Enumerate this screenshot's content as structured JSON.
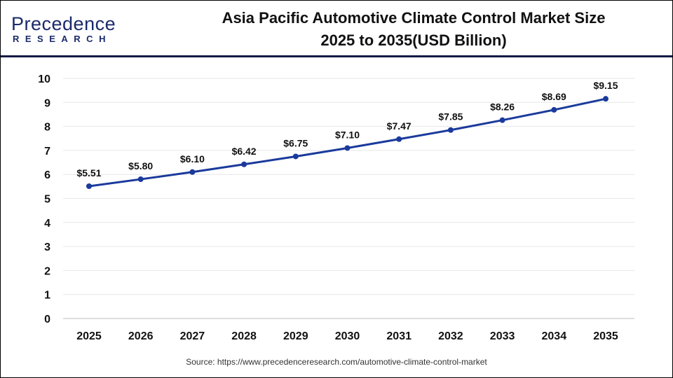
{
  "logo": {
    "line1": "Precedence",
    "line2": "RESEARCH"
  },
  "title_line1": "Asia Pacific Automotive Climate Control Market Size",
  "title_line2": "2025 to 2035(USD Billion)",
  "source": "Source: https://www.precedenceresearch.com/automotive-climate-control-market",
  "colors": {
    "line": "#1a3a9c",
    "header_rule": "#121a45",
    "grid": "#e6e6e6"
  },
  "chart_data": {
    "type": "line",
    "title": "Asia Pacific Automotive Climate Control Market Size 2025 to 2035(USD Billion)",
    "categories": [
      "2025",
      "2026",
      "2027",
      "2028",
      "2029",
      "2030",
      "2031",
      "2032",
      "2033",
      "2034",
      "2035"
    ],
    "series": [
      {
        "values": [
          5.51,
          5.8,
          6.1,
          6.42,
          6.75,
          7.1,
          7.47,
          7.85,
          8.26,
          8.69,
          9.15
        ]
      }
    ],
    "data_labels": [
      "$5.51",
      "$5.80",
      "$6.10",
      "$6.42",
      "$6.75",
      "$7.10",
      "$7.47",
      "$7.85",
      "$8.26",
      "$8.69",
      "$9.15"
    ],
    "yticks": [
      "0",
      "1",
      "2",
      "3",
      "4",
      "5",
      "6",
      "7",
      "8",
      "9",
      "10"
    ],
    "ylim": [
      0,
      10
    ],
    "grid": true,
    "legend": "none"
  }
}
